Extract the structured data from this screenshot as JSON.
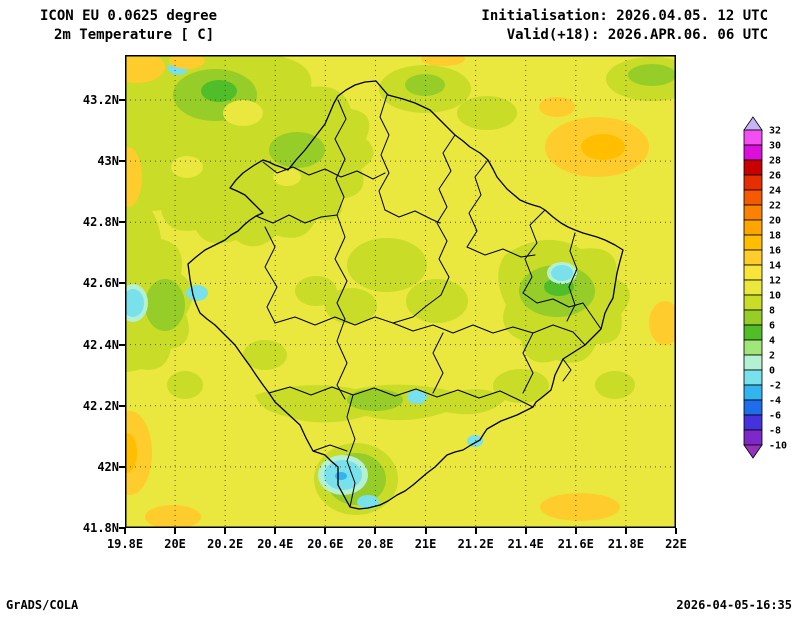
{
  "header": {
    "model": "ICON EU 0.0625 degree",
    "field": "2m Temperature [ C]",
    "initialisation": "Initialisation: 2026.04.05. 12 UTC",
    "valid": "Valid(+18): 2026.APR.06. 06 UTC"
  },
  "footer": {
    "credit": "GrADS/COLA",
    "timestamp": "2026-04-05-16:35"
  },
  "chart_data": {
    "type": "heatmap",
    "title": "2m Temperature [ C]",
    "region": "Kosovo municipality boundaries overlaid on shaded temperature field",
    "x_tick_labels": [
      "19.8E",
      "20E",
      "20.2E",
      "20.4E",
      "20.6E",
      "20.8E",
      "21E",
      "21.2E",
      "21.4E",
      "21.6E",
      "21.8E",
      "22E"
    ],
    "y_tick_labels": [
      "43.2N",
      "43N",
      "42.8N",
      "42.6N",
      "42.4N",
      "42.2N",
      "42N",
      "41.8N"
    ],
    "grid": "dotted",
    "legend_position": "right",
    "colorbar": {
      "units": "C",
      "tick_labels": [
        "32",
        "30",
        "28",
        "26",
        "24",
        "22",
        "20",
        "18",
        "16",
        "14",
        "12",
        "10",
        "8",
        "6",
        "4",
        "2",
        "0",
        "-2",
        "-4",
        "-6",
        "-8",
        "-10"
      ],
      "segment_colors_top_to_bottom": [
        "#f24ef2",
        "#dc0edc",
        "#c80000",
        "#e62e00",
        "#f55a00",
        "#fa8200",
        "#ffa500",
        "#ffbe00",
        "#fecd2d",
        "#f8e53a",
        "#eae73e",
        "#c8dc28",
        "#96cd28",
        "#50be28",
        "#a0e678",
        "#b4f0d2",
        "#78e1eb",
        "#32b4f0",
        "#1e6eeb",
        "#4632dc",
        "#7d28c8"
      ],
      "arrow_top_color": "#c8b4f5",
      "arrow_bottom_color": "#9632b9"
    },
    "field_shading_summary": {
      "background_c": "10-12",
      "green_patches_c": "4-10",
      "cyan_patches_c": "-2-2",
      "orange_patches_c": "12-18"
    }
  }
}
